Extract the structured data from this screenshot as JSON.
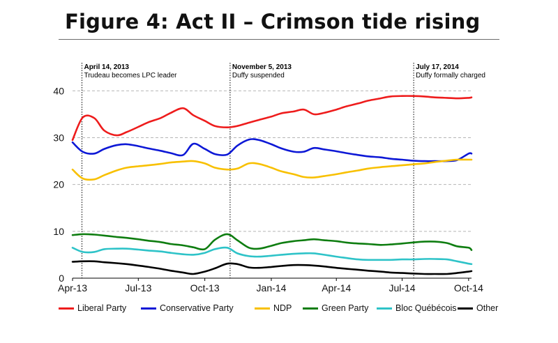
{
  "title": "Figure 4: Act II – Crimson tide rising",
  "chart_data": {
    "type": "line",
    "x_dates": [
      "2013-04-01",
      "2013-04-15",
      "2013-05-01",
      "2013-05-15",
      "2013-06-01",
      "2013-06-15",
      "2013-07-01",
      "2013-07-15",
      "2013-08-01",
      "2013-08-15",
      "2013-09-01",
      "2013-09-15",
      "2013-10-01",
      "2013-10-15",
      "2013-11-01",
      "2013-11-15",
      "2013-12-01",
      "2013-12-15",
      "2014-01-01",
      "2014-01-15",
      "2014-02-01",
      "2014-02-15",
      "2014-03-01",
      "2014-03-15",
      "2014-04-01",
      "2014-04-15",
      "2014-05-01",
      "2014-05-15",
      "2014-06-01",
      "2014-06-15",
      "2014-07-01",
      "2014-07-15",
      "2014-08-01",
      "2014-08-15",
      "2014-09-01",
      "2014-09-15",
      "2014-10-01",
      "2014-10-05"
    ],
    "x_tick_labels": [
      {
        "date": "2013-04-01",
        "label": "Apr-13"
      },
      {
        "date": "2013-07-01",
        "label": "Jul-13"
      },
      {
        "date": "2013-10-01",
        "label": "Oct-13"
      },
      {
        "date": "2014-01-01",
        "label": "Jan-14"
      },
      {
        "date": "2014-04-01",
        "label": "Apr-14"
      },
      {
        "date": "2014-07-01",
        "label": "Jul-14"
      },
      {
        "date": "2014-10-01",
        "label": "Oct-14"
      }
    ],
    "x_range": [
      "2013-04-01",
      "2014-10-05"
    ],
    "y_ticks": [
      0,
      10,
      20,
      30,
      40
    ],
    "ylim": [
      0,
      46
    ],
    "grid": "horizontal dashed",
    "legend_position": "bottom",
    "series": [
      {
        "name": "Liberal Party",
        "color": "#ee1c1c",
        "values": [
          29.5,
          34.3,
          34.2,
          31.5,
          30.5,
          31.2,
          32.3,
          33.3,
          34.2,
          35.3,
          36.3,
          34.8,
          33.6,
          32.5,
          32.2,
          32.5,
          33.2,
          33.8,
          34.5,
          35.2,
          35.6,
          36.0,
          35.0,
          35.3,
          36.0,
          36.7,
          37.3,
          37.9,
          38.4,
          38.8,
          38.9,
          38.9,
          38.8,
          38.6,
          38.5,
          38.4,
          38.5,
          38.6
        ]
      },
      {
        "name": "Conservative Party",
        "color": "#0d18d6",
        "values": [
          29.0,
          27.0,
          26.6,
          27.6,
          28.4,
          28.6,
          28.2,
          27.7,
          27.2,
          26.7,
          26.3,
          28.7,
          27.6,
          26.5,
          26.4,
          28.3,
          29.6,
          29.5,
          28.6,
          27.7,
          27.0,
          27.0,
          27.8,
          27.5,
          27.1,
          26.7,
          26.3,
          26.0,
          25.8,
          25.5,
          25.3,
          25.1,
          25.0,
          25.0,
          25.0,
          25.2,
          26.6,
          26.6
        ]
      },
      {
        "name": "NDP",
        "color": "#f8c000",
        "values": [
          23.2,
          21.3,
          21.1,
          22.0,
          23.0,
          23.6,
          23.9,
          24.1,
          24.4,
          24.7,
          24.9,
          25.0,
          24.5,
          23.6,
          23.2,
          23.4,
          24.5,
          24.4,
          23.6,
          22.8,
          22.2,
          21.6,
          21.5,
          21.8,
          22.2,
          22.6,
          23.0,
          23.4,
          23.7,
          23.9,
          24.1,
          24.3,
          24.5,
          24.8,
          25.1,
          25.3,
          25.3,
          25.3
        ]
      },
      {
        "name": "Green Party",
        "color": "#0e7d10",
        "values": [
          9.2,
          9.4,
          9.3,
          9.1,
          8.8,
          8.6,
          8.3,
          8.0,
          7.7,
          7.3,
          7.0,
          6.6,
          6.2,
          8.2,
          9.4,
          8.1,
          6.5,
          6.3,
          6.9,
          7.5,
          7.9,
          8.1,
          8.3,
          8.1,
          7.9,
          7.6,
          7.4,
          7.3,
          7.1,
          7.2,
          7.4,
          7.6,
          7.8,
          7.8,
          7.5,
          6.8,
          6.5,
          6.0
        ]
      },
      {
        "name": "Bloc Québécois",
        "color": "#2ec3c8",
        "values": [
          6.5,
          5.6,
          5.6,
          6.2,
          6.3,
          6.3,
          6.1,
          5.9,
          5.7,
          5.4,
          5.1,
          5.0,
          5.4,
          6.2,
          6.5,
          5.3,
          4.7,
          4.6,
          4.8,
          5.0,
          5.2,
          5.3,
          5.3,
          5.0,
          4.6,
          4.3,
          4.0,
          3.9,
          3.9,
          3.9,
          4.0,
          4.0,
          4.1,
          4.1,
          4.0,
          3.6,
          3.1,
          3.0
        ]
      },
      {
        "name": "Other",
        "color": "#000000",
        "values": [
          3.5,
          3.6,
          3.6,
          3.4,
          3.2,
          3.0,
          2.7,
          2.4,
          2.0,
          1.6,
          1.2,
          0.9,
          1.4,
          2.1,
          3.1,
          3.0,
          2.3,
          2.2,
          2.4,
          2.6,
          2.8,
          2.8,
          2.7,
          2.5,
          2.2,
          2.0,
          1.8,
          1.6,
          1.4,
          1.2,
          1.1,
          1.0,
          0.9,
          0.9,
          0.9,
          1.1,
          1.4,
          1.5
        ]
      }
    ],
    "annotations": [
      {
        "date": "2013-04-14",
        "heading": "April 14, 2013",
        "text": "Trudeau becomes LPC leader"
      },
      {
        "date": "2013-11-05",
        "heading": "November 5, 2013",
        "text": "Duffy suspended"
      },
      {
        "date": "2014-07-17",
        "heading": "July 17, 2014",
        "text": "Duffy formally charged"
      }
    ]
  }
}
